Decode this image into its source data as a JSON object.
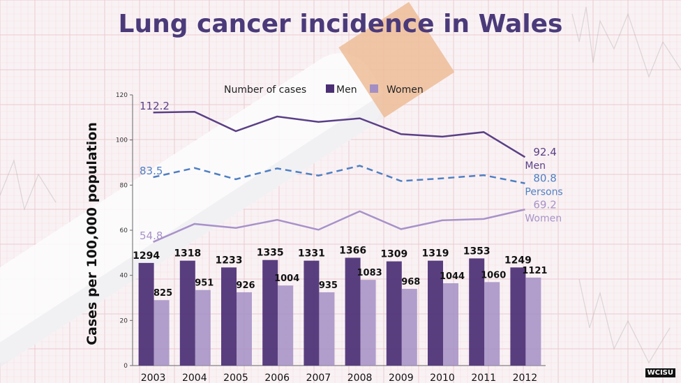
{
  "colors": {
    "men": "#4b2f74",
    "women": "#a48fc4",
    "persons": "#4f7fc3",
    "title": "#4b3a7a",
    "men_line": "#5a3f86",
    "women_line": "#a892c9"
  },
  "watermark": "WCISU",
  "chart_data": {
    "type": "bar",
    "title": "Lung cancer incidence in Wales",
    "ylabel": "Cases per 100,000 population",
    "xlabel": "",
    "ylim": [
      0,
      120
    ],
    "yticks": [
      0,
      20,
      40,
      60,
      80,
      100,
      120
    ],
    "categories": [
      "2003",
      "2004",
      "2005",
      "2006",
      "2007",
      "2008",
      "2009",
      "2010",
      "2011",
      "2012"
    ],
    "legend": {
      "title": "Number of cases",
      "entries": [
        "Men",
        "Women"
      ],
      "position": "top"
    },
    "bar_series": [
      {
        "name": "Men",
        "rates": [
          45.5,
          46.5,
          43.5,
          46.8,
          46.5,
          47.8,
          46.2,
          46.5,
          47.5,
          43.5
        ],
        "labels": [
          "1294",
          "1318",
          "1233",
          "1335",
          "1331",
          "1366",
          "1309",
          "1319",
          "1353",
          "1249"
        ]
      },
      {
        "name": "Women",
        "rates": [
          29.0,
          33.5,
          32.5,
          35.5,
          32.5,
          38.0,
          34.0,
          36.5,
          37.0,
          39.0
        ],
        "labels": [
          "825",
          "951",
          "926",
          "1004",
          "935",
          "1083",
          "968",
          "1044",
          "1060",
          "1121"
        ]
      }
    ],
    "line_series": [
      {
        "name": "Men",
        "values": [
          112.2,
          112.5,
          103.9,
          110.4,
          108.0,
          109.6,
          102.6,
          101.5,
          103.5,
          92.4
        ],
        "start_label": "112.2",
        "end_label": "92.4",
        "end_name": "Men",
        "style": "solid"
      },
      {
        "name": "Persons",
        "values": [
          83.5,
          87.6,
          82.6,
          87.4,
          84.2,
          88.6,
          81.8,
          83.0,
          84.4,
          80.8
        ],
        "start_label": "83.5",
        "end_label": "80.8",
        "end_name": "Persons",
        "style": "dashed"
      },
      {
        "name": "Women",
        "values": [
          54.8,
          62.8,
          61.0,
          64.6,
          60.2,
          68.4,
          60.5,
          64.4,
          65.0,
          69.2
        ],
        "start_label": "54.8",
        "end_label": "69.2",
        "end_name": "Women",
        "style": "solid"
      }
    ],
    "grid": false
  }
}
